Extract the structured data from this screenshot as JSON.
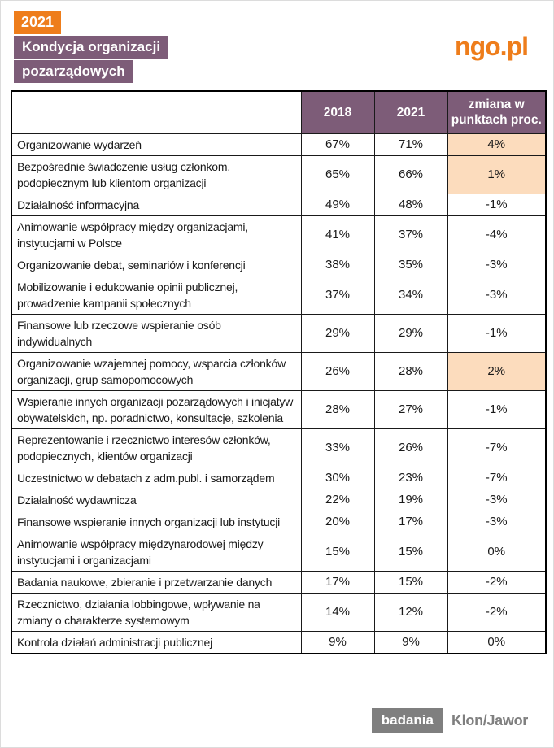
{
  "header": {
    "year_badge": "2021",
    "title_lines": [
      "Kondycja organizacji",
      "pozarządowych"
    ],
    "logo_text": "ngo.pl"
  },
  "colors": {
    "accent_orange": "#ee7d1b",
    "brand_purple": "#7d5c78",
    "highlight_peach": "#fcdcbd",
    "footer_gray": "#7f7f7f"
  },
  "chart_data": {
    "type": "table",
    "title": "2021 Kondycja organizacji pozarządowych",
    "unit": "%",
    "columns": [
      "2018",
      "2021",
      "zmiana w punktach proc."
    ],
    "categories": [
      "Organizowanie wydarzeń",
      "Bezpośrednie świadczenie usług członkom, podopiecznym lub klientom organizacji",
      "Działalność informacyjna",
      "Animowanie współpracy między organizacjami, instytucjami w Polsce",
      "Organizowanie debat, seminariów i konferencji",
      "Mobilizowanie i edukowanie opinii publicznej, prowadzenie kampanii społecznych",
      "Finansowe lub rzeczowe wspieranie osób indywidualnych",
      "Organizowanie wzajemnej pomocy, wsparcia członków organizacji, grup samopomocowych",
      "Wspieranie innych organizacji pozarządowych i inicjatyw obywatelskich, np. poradnictwo, konsultacje, szkolenia",
      "Reprezentowanie i rzecznictwo interesów członków, podopiecznych, klientów organizacji",
      "Uczestnictwo w debatach z adm.publ. i samorządem",
      "Działalność wydawnicza",
      "Finansowe wspieranie innych organizacji lub instytucji",
      "Animowanie współpracy międzynarodowej między instytucjami i organizacjami",
      "Badania naukowe, zbieranie i przetwarzanie danych",
      "Rzecznictwo, działania lobbingowe, wpływanie na zmiany o charakterze systemowym",
      "Kontrola działań administracji publicznej"
    ],
    "series": [
      {
        "name": "2018",
        "values": [
          67,
          65,
          49,
          41,
          38,
          37,
          29,
          26,
          28,
          33,
          30,
          22,
          20,
          15,
          17,
          14,
          9
        ]
      },
      {
        "name": "2021",
        "values": [
          71,
          66,
          48,
          37,
          35,
          34,
          29,
          28,
          27,
          26,
          23,
          19,
          17,
          15,
          15,
          12,
          9
        ]
      },
      {
        "name": "zmiana w punktach proc.",
        "values": [
          4,
          1,
          -1,
          -4,
          -3,
          -3,
          -1,
          2,
          -1,
          -7,
          -7,
          -3,
          -3,
          0,
          -2,
          -2,
          0
        ]
      }
    ],
    "highlighted_rows": [
      0,
      1,
      7
    ],
    "legend_position": "none",
    "grid": true
  },
  "footer": {
    "badge_label": "badania",
    "brand_label": "Klon/Jawor"
  }
}
